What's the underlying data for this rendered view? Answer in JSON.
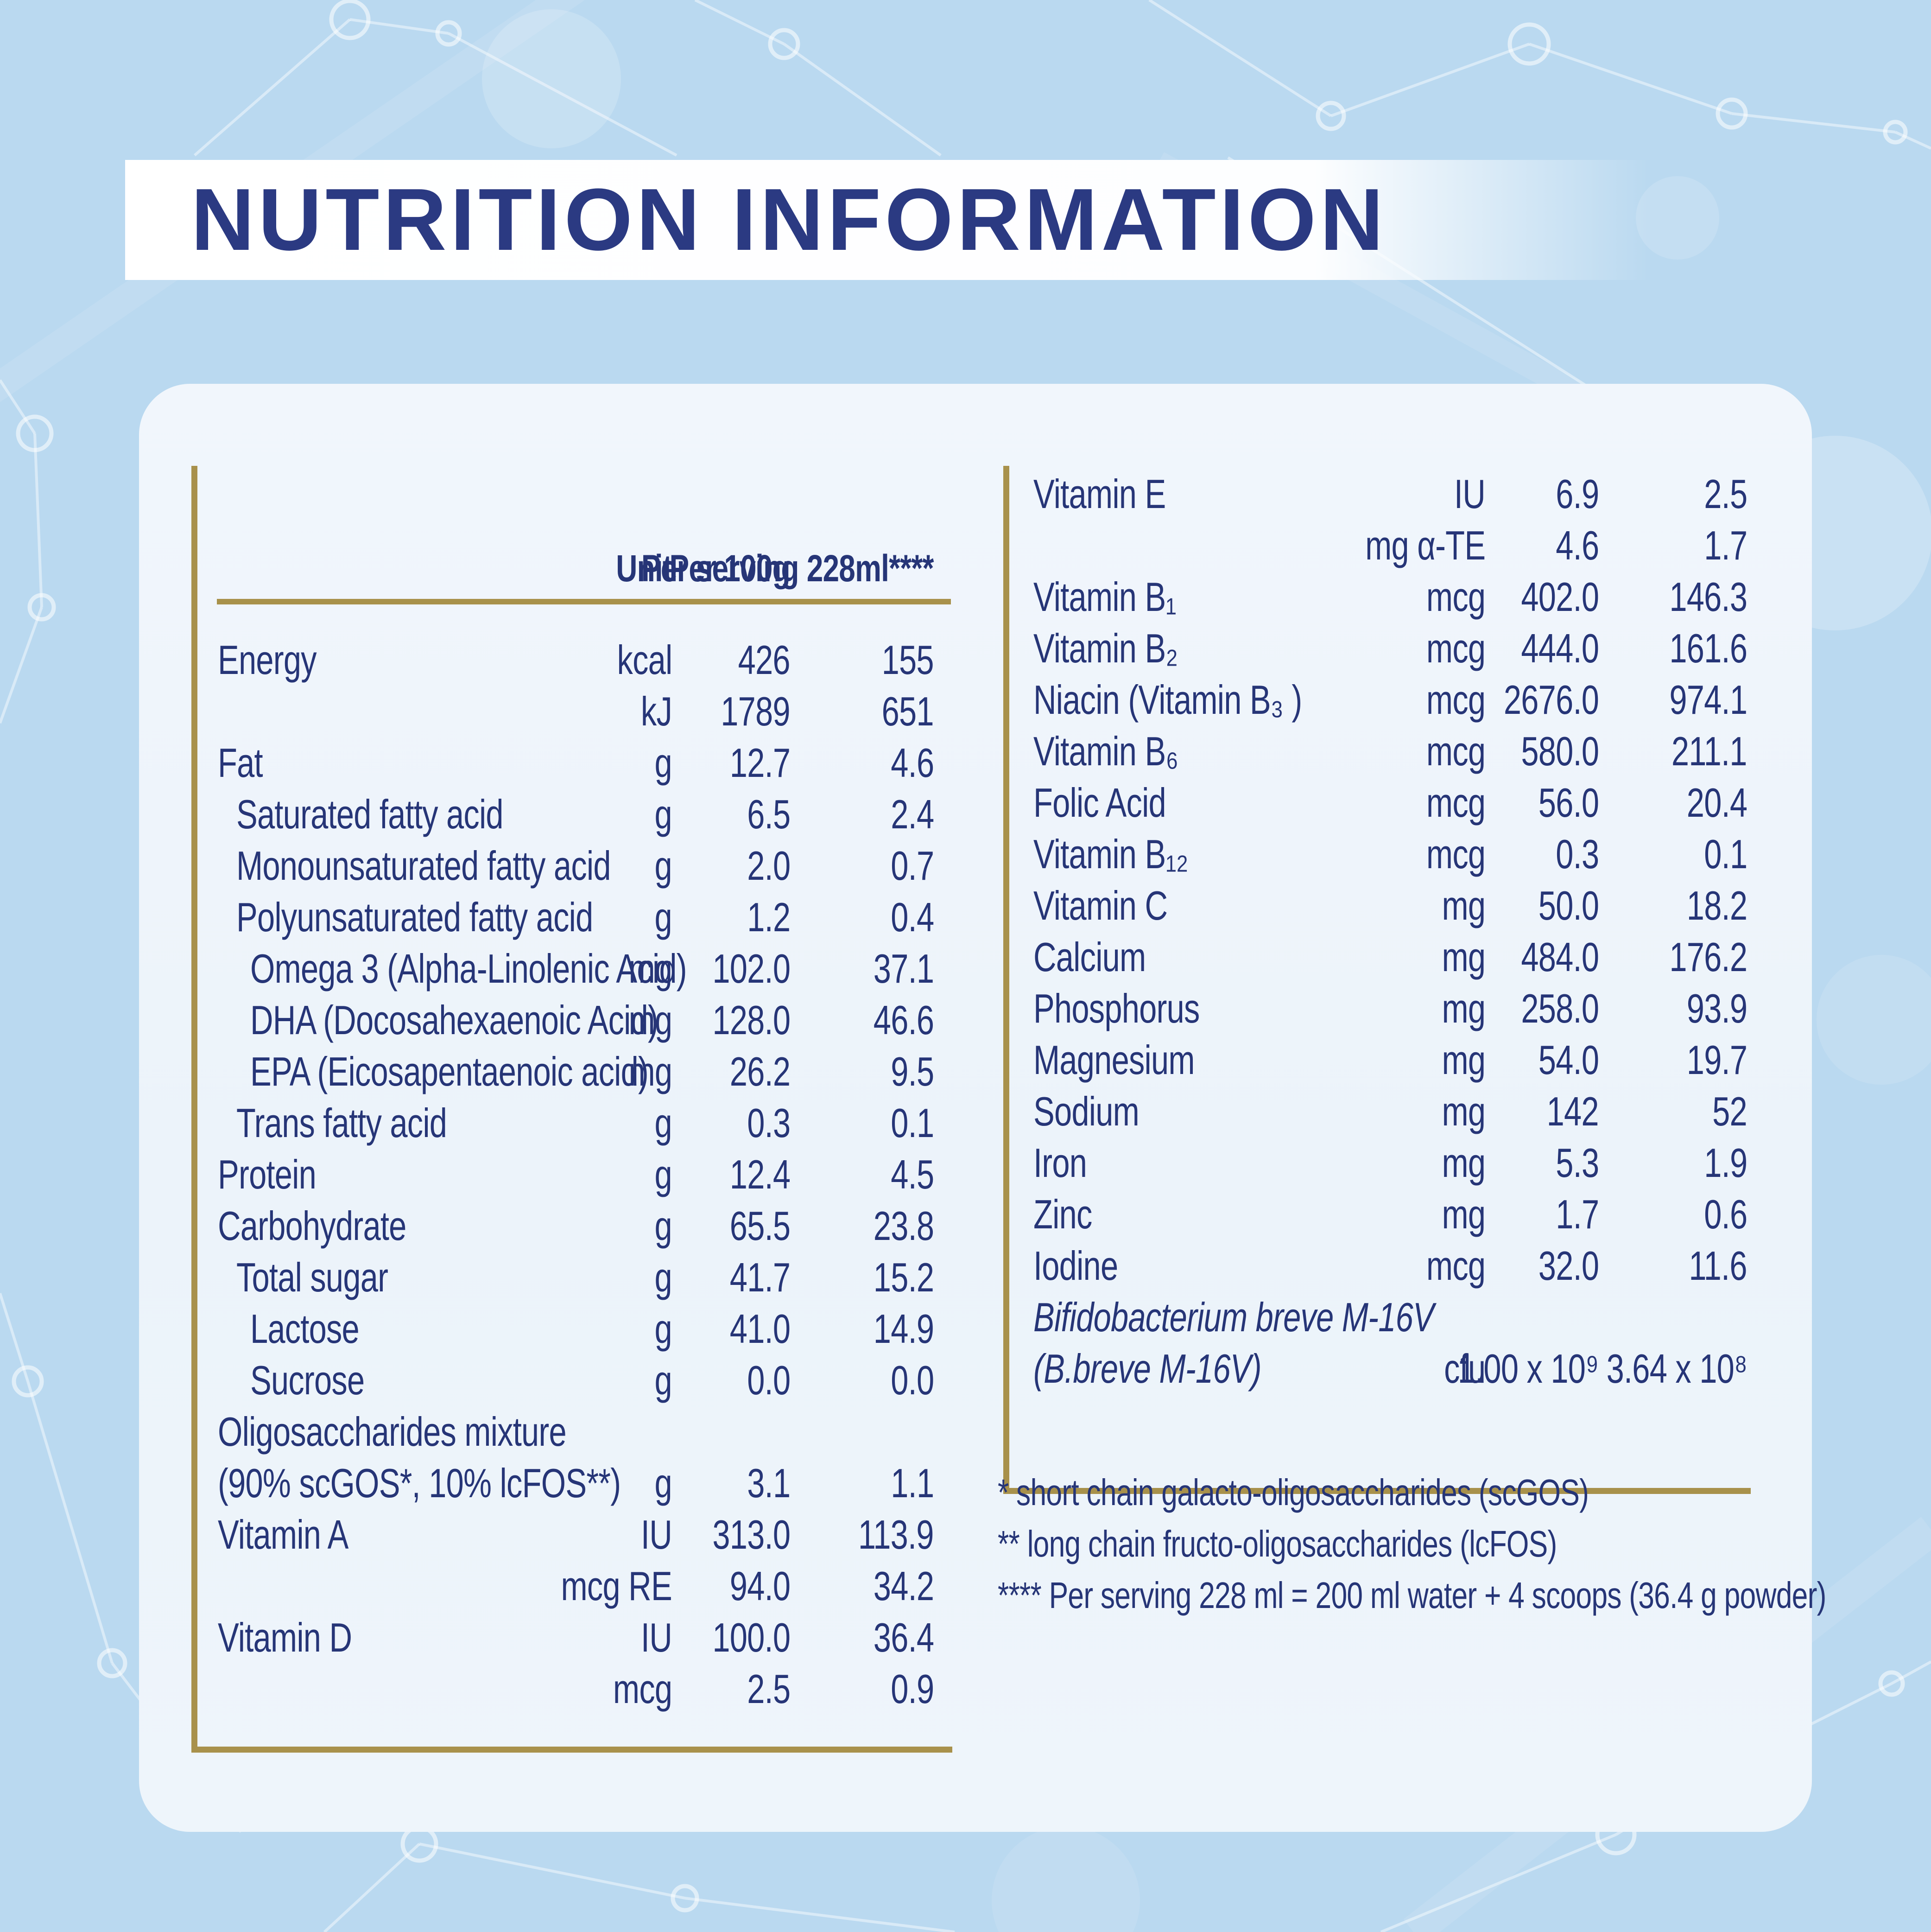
{
  "title": "NUTRITION INFORMATION",
  "colors": {
    "background_blue": "#bad9f0",
    "panel": "#eef5fb",
    "title_band": "#ffffff",
    "gold_rule": "#a8914b",
    "text_navy": "#263577",
    "title_navy": "#2b3a82"
  },
  "table_left": {
    "headers": {
      "unit": "Unit",
      "per_100g": "Per\n100g",
      "per_serving": "Per\nserving\n228ml****"
    },
    "rows": [
      {
        "label": "Energy",
        "indent": 0,
        "unit": "kcal",
        "per100": "426",
        "serving": "155"
      },
      {
        "label": "",
        "indent": 0,
        "unit": "kJ",
        "per100": "1789",
        "serving": "651"
      },
      {
        "label": "Fat",
        "indent": 0,
        "unit": "g",
        "per100": "12.7",
        "serving": "4.6"
      },
      {
        "label": "Saturated fatty acid",
        "indent": 1,
        "unit": "g",
        "per100": "6.5",
        "serving": "2.4"
      },
      {
        "label": "Monounsaturated fatty acid",
        "indent": 1,
        "unit": "g",
        "per100": "2.0",
        "serving": "0.7"
      },
      {
        "label": "Polyunsaturated fatty acid",
        "indent": 1,
        "unit": "g",
        "per100": "1.2",
        "serving": "0.4"
      },
      {
        "label": "Omega 3 (Alpha-Linolenic Acid)",
        "indent": 2,
        "unit": "mg",
        "per100": "102.0",
        "serving": "37.1"
      },
      {
        "label": "DHA (Docosahexaenoic Acid)",
        "indent": 2,
        "unit": "mg",
        "per100": "128.0",
        "serving": "46.6"
      },
      {
        "label": "EPA (Eicosapentaenoic acid)",
        "indent": 2,
        "unit": "mg",
        "per100": "26.2",
        "serving": "9.5"
      },
      {
        "label": "Trans fatty acid",
        "indent": 1,
        "unit": "g",
        "per100": "0.3",
        "serving": "0.1"
      },
      {
        "label": "Protein",
        "indent": 0,
        "unit": "g",
        "per100": "12.4",
        "serving": "4.5"
      },
      {
        "label": "Carbohydrate",
        "indent": 0,
        "unit": "g",
        "per100": "65.5",
        "serving": "23.8"
      },
      {
        "label": "Total sugar",
        "indent": 1,
        "unit": "g",
        "per100": "41.7",
        "serving": "15.2"
      },
      {
        "label": "Lactose",
        "indent": 2,
        "unit": "g",
        "per100": "41.0",
        "serving": "14.9"
      },
      {
        "label": "Sucrose",
        "indent": 2,
        "unit": "g",
        "per100": "0.0",
        "serving": "0.0"
      },
      {
        "label": "Oligosaccharides mixture",
        "indent": 0,
        "unit": "",
        "per100": "",
        "serving": ""
      },
      {
        "label": "(90% scGOS*, 10% lcFOS**)",
        "indent": 0,
        "unit": "g",
        "per100": "3.1",
        "serving": "1.1"
      },
      {
        "label": "Vitamin A",
        "indent": 0,
        "unit": "IU",
        "per100": "313.0",
        "serving": "113.9"
      },
      {
        "label": "",
        "indent": 0,
        "unit": "mcg RE",
        "per100": "94.0",
        "serving": "34.2"
      },
      {
        "label": "Vitamin D",
        "indent": 0,
        "unit": "IU",
        "per100": "100.0",
        "serving": "36.4"
      },
      {
        "label": "",
        "indent": 0,
        "unit": "mcg",
        "per100": "2.5",
        "serving": "0.9"
      }
    ]
  },
  "table_right": {
    "rows": [
      {
        "label": "Vitamin E",
        "unit": "IU",
        "per100": "6.9",
        "serving": "2.5"
      },
      {
        "label": "",
        "unit": "mg α-TE",
        "per100": "4.6",
        "serving": "1.7"
      },
      {
        "label": "Vitamin B₁",
        "unit": "mcg",
        "per100": "402.0",
        "serving": "146.3"
      },
      {
        "label": "Vitamin B₂",
        "unit": "mcg",
        "per100": "444.0",
        "serving": "161.6"
      },
      {
        "label": "Niacin (Vitamin B₃ )",
        "unit": "mcg",
        "per100": "2676.0",
        "serving": "974.1"
      },
      {
        "label": "Vitamin B₆",
        "unit": "mcg",
        "per100": "580.0",
        "serving": "211.1"
      },
      {
        "label": "Folic Acid",
        "unit": "mcg",
        "per100": "56.0",
        "serving": "20.4"
      },
      {
        "label": "Vitamin B₁₂",
        "unit": "mcg",
        "per100": "0.3",
        "serving": "0.1"
      },
      {
        "label": "Vitamin C",
        "unit": "mg",
        "per100": "50.0",
        "serving": "18.2"
      },
      {
        "label": "Calcium",
        "unit": "mg",
        "per100": "484.0",
        "serving": "176.2"
      },
      {
        "label": "Phosphorus",
        "unit": "mg",
        "per100": "258.0",
        "serving": "93.9"
      },
      {
        "label": "Magnesium",
        "unit": "mg",
        "per100": "54.0",
        "serving": "19.7"
      },
      {
        "label": "Sodium",
        "unit": "mg",
        "per100": "142",
        "serving": "52"
      },
      {
        "label": "Iron",
        "unit": "mg",
        "per100": "5.3",
        "serving": "1.9"
      },
      {
        "label": "Zinc",
        "unit": "mg",
        "per100": "1.7",
        "serving": "0.6"
      },
      {
        "label": "Iodine",
        "unit": "mcg",
        "per100": "32.0",
        "serving": "11.6"
      },
      {
        "label": "Bifidobacterium breve M-16V",
        "italic": true,
        "unit": "",
        "per100": "",
        "serving": ""
      },
      {
        "label": "(B.breve M-16V)",
        "italic": true,
        "unit": "cfu",
        "per100": "1.00 x 10⁹",
        "serving": "3.64 x 10⁸"
      }
    ]
  },
  "footnotes": [
    "* short chain galacto-oligosaccharides (scGOS)",
    "** long chain fructo-oligosaccharides (lcFOS)",
    "**** Per serving 228 ml = 200 ml water + 4 scoops (36.4 g powder)"
  ]
}
